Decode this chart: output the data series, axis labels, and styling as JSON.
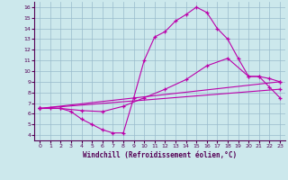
{
  "xlabel": "Windchill (Refroidissement éolien,°C)",
  "background_color": "#cce8ec",
  "line_color": "#bb00aa",
  "grid_color": "#99bbcc",
  "xlim": [
    -0.5,
    23.5
  ],
  "ylim": [
    3.5,
    16.5
  ],
  "xticks": [
    0,
    1,
    2,
    3,
    4,
    5,
    6,
    7,
    8,
    9,
    10,
    11,
    12,
    13,
    14,
    15,
    16,
    17,
    18,
    19,
    20,
    21,
    22,
    23
  ],
  "yticks": [
    4,
    5,
    6,
    7,
    8,
    9,
    10,
    11,
    12,
    13,
    14,
    15,
    16
  ],
  "line1_x": [
    0,
    1,
    2,
    3,
    4,
    5,
    6,
    7,
    8,
    9,
    10,
    11,
    12,
    13,
    14,
    15,
    16,
    17,
    18,
    19,
    20,
    21,
    22,
    23
  ],
  "line1_y": [
    6.5,
    6.5,
    6.5,
    6.2,
    5.5,
    5.0,
    4.5,
    4.2,
    4.2,
    7.5,
    11.0,
    13.2,
    13.7,
    14.7,
    15.3,
    16.0,
    15.5,
    14.0,
    13.0,
    11.2,
    9.5,
    9.5,
    8.5,
    7.5
  ],
  "line2_x": [
    0,
    2,
    4,
    6,
    8,
    10,
    12,
    14,
    16,
    18,
    20,
    21,
    22,
    23
  ],
  "line2_y": [
    6.5,
    6.5,
    6.3,
    6.2,
    6.7,
    7.5,
    8.3,
    9.2,
    10.5,
    11.2,
    9.5,
    9.5,
    9.3,
    9.0
  ],
  "line3_x": [
    0,
    23
  ],
  "line3_y": [
    6.5,
    8.3
  ],
  "line4_x": [
    0,
    23
  ],
  "line4_y": [
    6.5,
    9.0
  ]
}
